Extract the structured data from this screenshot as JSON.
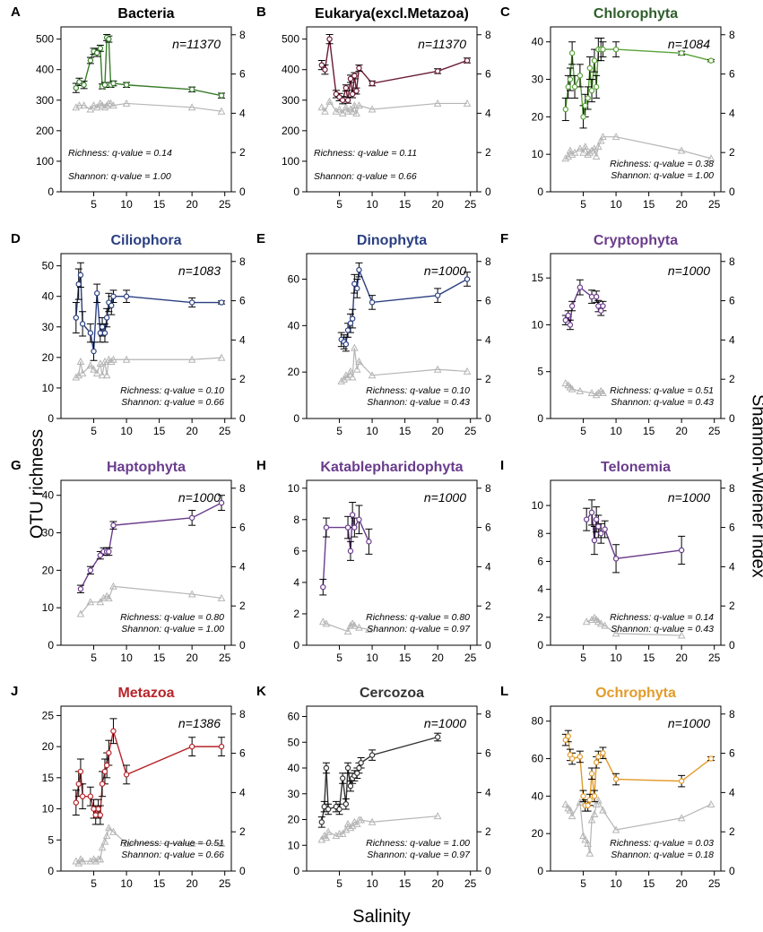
{
  "figure": {
    "y_left_label": "OTU richness",
    "y_right_label": "Shannon-Wiener Index",
    "x_label": "Salinity"
  },
  "colors": {
    "green": "#3a7d2c",
    "maroon": "#6b1a33",
    "lightgreen": "#5aa33a",
    "blue": "#2a3f80",
    "purple": "#6a3c8c",
    "red": "#b8242a",
    "dark": "#333333",
    "orange": "#e39b2a",
    "grey": "#b5b5b5"
  },
  "chart_data": [
    {
      "type": "line",
      "letter": "A",
      "title": "Bacteria",
      "title_color": "#000000",
      "color": "#3a7d2c",
      "n_label": "n=11370",
      "ylim": [
        0,
        540
      ],
      "yticks": [
        0,
        100,
        200,
        300,
        400,
        500
      ],
      "y2lim": [
        0,
        8.4
      ],
      "y2ticks": [
        0,
        2,
        4,
        6,
        8
      ],
      "xlim": [
        0,
        26
      ],
      "xticks": [
        5,
        10,
        15,
        20,
        25
      ],
      "stats": [
        "Richness: q-value = 0.14",
        "Shannon: q-value = 1.00"
      ],
      "stats_pos": "left-low",
      "x": [
        2.3,
        2.8,
        3.5,
        4.5,
        5.0,
        5.5,
        6.0,
        6.3,
        6.7,
        7.0,
        7.3,
        7.6,
        8.0,
        10,
        20,
        24.5
      ],
      "y": [
        340,
        360,
        350,
        430,
        460,
        455,
        470,
        345,
        350,
        505,
        500,
        350,
        355,
        350,
        335,
        315
      ],
      "err": [
        15,
        12,
        12,
        10,
        10,
        12,
        10,
        8,
        8,
        10,
        10,
        8,
        8,
        8,
        8,
        8
      ],
      "shannon": [
        4.3,
        4.4,
        4.4,
        4.2,
        4.4,
        4.3,
        4.5,
        4.4,
        4.3,
        4.4,
        4.5,
        4.5,
        4.4,
        4.5,
        4.3,
        4.1
      ]
    },
    {
      "type": "line",
      "letter": "B",
      "title": "Eukarya(excl.Metazoa)",
      "title_color": "#000000",
      "color": "#6b1a33",
      "n_label": "n=11370",
      "ylim": [
        0,
        540
      ],
      "yticks": [
        0,
        100,
        200,
        300,
        400,
        500
      ],
      "y2lim": [
        0,
        8.4
      ],
      "y2ticks": [
        0,
        2,
        4,
        6,
        8
      ],
      "xlim": [
        0,
        26
      ],
      "xticks": [
        5,
        10,
        15,
        20,
        25
      ],
      "stats": [
        "Richness: q-value = 0.11",
        "Shannon: q-value = 0.66"
      ],
      "stats_pos": "left-low",
      "x": [
        2.3,
        2.8,
        3.5,
        4.5,
        5.0,
        5.5,
        6.0,
        6.3,
        6.7,
        7.0,
        7.3,
        7.6,
        8.0,
        10,
        20,
        24.5
      ],
      "y": [
        415,
        400,
        500,
        320,
        310,
        300,
        340,
        300,
        370,
        320,
        380,
        330,
        405,
        355,
        395,
        430
      ],
      "err": [
        15,
        15,
        15,
        12,
        12,
        12,
        10,
        10,
        12,
        12,
        10,
        10,
        10,
        8,
        8,
        8
      ],
      "shannon": [
        4.3,
        4.1,
        4.6,
        4.1,
        4.2,
        4.0,
        4.3,
        4.1,
        4.2,
        4.1,
        4.4,
        4.0,
        4.4,
        4.2,
        4.5,
        4.5
      ]
    },
    {
      "type": "line",
      "letter": "C",
      "title": "Chlorophyta",
      "title_color": "#2e5e2a",
      "color": "#5aa33a",
      "n_label": "n=1084",
      "ylim": [
        0,
        44
      ],
      "yticks": [
        0,
        10,
        20,
        30,
        40
      ],
      "y2lim": [
        0,
        8.4
      ],
      "y2ticks": [
        0,
        2,
        4,
        6,
        8
      ],
      "xlim": [
        0,
        26
      ],
      "xticks": [
        5,
        10,
        15,
        20,
        25
      ],
      "stats": [
        "Richness: q-value = 0.38",
        "Shannon: q-value = 1.00"
      ],
      "stats_pos": "mid-low",
      "x": [
        2.3,
        2.7,
        3.0,
        3.3,
        3.7,
        4.5,
        5.0,
        5.3,
        5.7,
        6.0,
        6.3,
        6.7,
        7.0,
        7.3,
        7.7,
        8.0,
        10,
        20,
        24.5
      ],
      "y": [
        22,
        28,
        30,
        37,
        28,
        31,
        20,
        23,
        25,
        33,
        27,
        35,
        28,
        38,
        38,
        38,
        38,
        37,
        35
      ],
      "err": [
        3,
        3,
        3,
        3,
        3,
        3,
        3,
        3,
        3,
        3,
        3,
        3,
        3,
        3,
        3,
        2,
        2,
        0.5,
        0.3
      ],
      "shannon": [
        1.7,
        1.8,
        2.1,
        1.9,
        2.0,
        2.2,
        2.0,
        2.3,
        1.9,
        2.0,
        2.1,
        2.2,
        1.8,
        2.3,
        2.6,
        2.8,
        2.8,
        2.1,
        1.7
      ]
    },
    {
      "type": "line",
      "letter": "D",
      "title": "Ciliophora",
      "title_color": "#2a3f80",
      "color": "#2a3f80",
      "n_label": "n=1083",
      "ylim": [
        0,
        54
      ],
      "yticks": [
        0,
        10,
        20,
        30,
        40,
        50
      ],
      "y2lim": [
        0,
        8.4
      ],
      "y2ticks": [
        0,
        2,
        4,
        6,
        8
      ],
      "xlim": [
        0,
        26
      ],
      "xticks": [
        5,
        10,
        15,
        20,
        25
      ],
      "stats": [
        "Richness: q-value = 0.10",
        "Shannon: q-value = 0.66"
      ],
      "stats_pos": "mid-low",
      "x": [
        2.3,
        2.7,
        3.0,
        3.3,
        4.5,
        5.0,
        5.5,
        6.0,
        6.3,
        6.7,
        7.0,
        7.3,
        7.7,
        8.0,
        10,
        20,
        24.5
      ],
      "y": [
        33,
        44,
        47,
        31,
        28,
        22,
        41,
        28,
        30,
        28,
        33,
        38,
        37,
        40,
        40,
        38,
        38
      ],
      "err": [
        5,
        5,
        4,
        4,
        3,
        3,
        3,
        3,
        3,
        3,
        3,
        3,
        3,
        2,
        2,
        1.5,
        0.5
      ],
      "shannon": [
        2.1,
        2.2,
        2.9,
        2.3,
        2.7,
        2.5,
        2.3,
        2.8,
        2.2,
        2.9,
        2.2,
        3.0,
        2.9,
        3.0,
        3.0,
        3.0,
        3.1
      ]
    },
    {
      "type": "line",
      "letter": "E",
      "title": "Dinophyta",
      "title_color": "#2a3f80",
      "color": "#2a3f80",
      "n_label": "n=1000",
      "ylim": [
        0,
        71
      ],
      "yticks": [
        0,
        20,
        40,
        60
      ],
      "y2lim": [
        0,
        8.4
      ],
      "y2ticks": [
        0,
        2,
        4,
        6,
        8
      ],
      "xlim": [
        0,
        26
      ],
      "xticks": [
        5,
        10,
        15,
        20,
        25
      ],
      "stats": [
        "Richness: q-value = 0.10",
        "Shannon: q-value = 0.43"
      ],
      "stats_pos": "mid-low",
      "x": [
        5.3,
        5.7,
        6.0,
        6.3,
        6.7,
        7.0,
        7.3,
        7.7,
        8.0,
        10,
        20,
        24.5
      ],
      "y": [
        34,
        33,
        32,
        38,
        41,
        43,
        58,
        56,
        64,
        50,
        53,
        60
      ],
      "err": [
        3,
        3,
        3,
        3,
        4,
        4,
        4,
        4,
        3,
        3,
        3,
        3
      ],
      "shannon": [
        1.9,
        2.0,
        2.2,
        2.1,
        2.4,
        2.1,
        3.6,
        2.5,
        2.9,
        2.2,
        2.5,
        2.4
      ]
    },
    {
      "type": "line",
      "letter": "F",
      "title": "Cryptophyta",
      "title_color": "#6a3c8c",
      "color": "#6a3c8c",
      "n_label": "n=1000",
      "ylim": [
        0,
        17.6
      ],
      "yticks": [
        0,
        5,
        10,
        15
      ],
      "y2lim": [
        0,
        8.4
      ],
      "y2ticks": [
        0,
        2,
        4,
        6,
        8
      ],
      "xlim": [
        0,
        26
      ],
      "xticks": [
        5,
        10,
        15,
        20,
        25
      ],
      "stats": [
        "Richness: q-value = 0.51",
        "Shannon: q-value = 0.43"
      ],
      "stats_pos": "mid-low",
      "x": [
        2.3,
        2.7,
        3.0,
        3.3,
        4.5,
        6.3,
        7.0,
        7.3,
        7.7,
        8.0
      ],
      "y": [
        10.5,
        11,
        10,
        12,
        14,
        13,
        13,
        12,
        11.5,
        12
      ],
      "err": [
        0.5,
        0.5,
        0.5,
        0.5,
        0.8,
        0.7,
        0.6,
        0.6,
        0.5,
        0.5
      ],
      "shannon": [
        1.8,
        1.7,
        1.6,
        1.5,
        1.4,
        1.3,
        1.2,
        1.3,
        1.4,
        1.3
      ]
    },
    {
      "type": "line",
      "letter": "G",
      "title": "Haptophyta",
      "title_color": "#6a3c8c",
      "color": "#6a3c8c",
      "n_label": "n=1000",
      "ylim": [
        0,
        44
      ],
      "yticks": [
        0,
        10,
        20,
        30,
        40
      ],
      "y2lim": [
        0,
        8.4
      ],
      "y2ticks": [
        0,
        2,
        4,
        6,
        8
      ],
      "xlim": [
        0,
        26
      ],
      "xticks": [
        5,
        10,
        15,
        20,
        25
      ],
      "stats": [
        "Richness: q-value = 0.80",
        "Shannon: q-value = 1.00"
      ],
      "stats_pos": "mid-low",
      "x": [
        3.0,
        4.5,
        6.0,
        6.5,
        7.0,
        7.3,
        8.0,
        20,
        24.5
      ],
      "y": [
        15,
        20,
        24,
        25,
        25,
        25,
        32,
        34,
        38
      ],
      "err": [
        1,
        1,
        1,
        1,
        1,
        1,
        1,
        2,
        2
      ],
      "shannon": [
        1.6,
        2.2,
        2.2,
        2.4,
        2.5,
        2.4,
        3.0,
        2.6,
        2.4
      ]
    },
    {
      "type": "line",
      "letter": "H",
      "title": "Katablepharidophyta",
      "title_color": "#6a3c8c",
      "color": "#6a3c8c",
      "n_label": "n=1000",
      "ylim": [
        0,
        10.5
      ],
      "yticks": [
        0,
        2,
        4,
        6,
        8,
        10
      ],
      "y2lim": [
        0,
        8.4
      ],
      "y2ticks": [
        0,
        2,
        4,
        6,
        8
      ],
      "xlim": [
        0,
        26
      ],
      "xticks": [
        5,
        10,
        15,
        20,
        25
      ],
      "stats": [
        "Richness: q-value = 0.80",
        "Shannon: q-value = 0.97"
      ],
      "stats_pos": "mid-low",
      "x": [
        2.5,
        3.0,
        6.3,
        6.7,
        7.0,
        7.3,
        8.0,
        9.5
      ],
      "y": [
        3.7,
        7.5,
        7.5,
        6,
        8.3,
        7.5,
        8,
        6.6
      ],
      "err": [
        0.5,
        0.6,
        0.7,
        0.6,
        0.8,
        0.6,
        0.9,
        0.8
      ],
      "shannon": [
        1.2,
        1.1,
        0.7,
        1.0,
        1.1,
        1.0,
        0.9,
        0.8
      ]
    },
    {
      "type": "line",
      "letter": "I",
      "title": "Telonemia",
      "title_color": "#6a3c8c",
      "color": "#6a3c8c",
      "n_label": "n=1000",
      "ylim": [
        0,
        11.8
      ],
      "yticks": [
        0,
        2,
        4,
        6,
        8,
        10
      ],
      "y2lim": [
        0,
        8.4
      ],
      "y2ticks": [
        0,
        2,
        4,
        6,
        8
      ],
      "xlim": [
        0,
        26
      ],
      "xticks": [
        5,
        10,
        15,
        20,
        25
      ],
      "stats": [
        "Richness: q-value = 0.14",
        "Shannon: q-value = 0.43"
      ],
      "stats_pos": "mid-low",
      "x": [
        5.5,
        6.3,
        6.7,
        7.0,
        7.3,
        7.7,
        8.3,
        10,
        20
      ],
      "y": [
        9,
        9.5,
        7.5,
        9,
        8.5,
        8,
        8.3,
        6.2,
        6.8
      ],
      "err": [
        0.8,
        0.9,
        1.0,
        0.9,
        0.8,
        0.7,
        0.6,
        1.0,
        1.0
      ],
      "shannon": [
        1.2,
        1.3,
        1.4,
        1.3,
        1.2,
        1.1,
        1.0,
        0.6,
        0.5
      ]
    },
    {
      "type": "line",
      "letter": "J",
      "title": "Metazoa",
      "title_color": "#b8242a",
      "color": "#b8242a",
      "n_label": "n=1386",
      "ylim": [
        0,
        26.5
      ],
      "yticks": [
        0,
        5,
        10,
        15,
        20,
        25
      ],
      "y2lim": [
        0,
        8.4
      ],
      "y2ticks": [
        0,
        2,
        4,
        6,
        8
      ],
      "xlim": [
        0,
        26
      ],
      "xticks": [
        5,
        10,
        15,
        20,
        25
      ],
      "stats": [
        "Richness: q-value = 0.51",
        "Shannon: q-value = 0.66"
      ],
      "stats_pos": "mid-low",
      "x": [
        2.3,
        2.7,
        3.0,
        3.3,
        4.5,
        5.0,
        5.3,
        5.7,
        6.0,
        6.3,
        6.7,
        7.0,
        7.3,
        8.0,
        10,
        20,
        24.5
      ],
      "y": [
        11,
        14,
        16,
        12,
        12,
        10,
        9,
        10,
        9,
        14,
        16,
        17,
        19,
        22.5,
        15.5,
        20,
        20
      ],
      "err": [
        2,
        2,
        2,
        2,
        1.5,
        1.5,
        1.5,
        1.5,
        1.5,
        2,
        2,
        2,
        2,
        2,
        1.5,
        1.5,
        1.5
      ],
      "shannon": [
        0.5,
        0.4,
        0.6,
        0.5,
        0.5,
        0.6,
        0.5,
        0.6,
        0.6,
        1.2,
        1.5,
        1.8,
        2.2,
        2.0,
        1.4,
        1.4,
        1.4
      ]
    },
    {
      "type": "line",
      "letter": "K",
      "title": "Cercozoa",
      "title_color": "#333333",
      "color": "#333333",
      "n_label": "n=1000",
      "ylim": [
        0,
        64
      ],
      "yticks": [
        0,
        10,
        20,
        30,
        40,
        50,
        60
      ],
      "y2lim": [
        0,
        8.4
      ],
      "y2ticks": [
        0,
        2,
        4,
        6,
        8
      ],
      "xlim": [
        0,
        26
      ],
      "xticks": [
        5,
        10,
        15,
        20,
        25
      ],
      "stats": [
        "Richness: q-value = 1.00",
        "Shannon: q-value = 0.97"
      ],
      "stats_pos": "mid-low",
      "x": [
        2.3,
        2.7,
        3.0,
        3.3,
        4.5,
        5.0,
        5.5,
        6.0,
        6.3,
        6.7,
        7.0,
        7.3,
        7.7,
        8.0,
        8.3,
        10,
        20
      ],
      "y": [
        19,
        25,
        40,
        24,
        25,
        24,
        36,
        26,
        40,
        33,
        36,
        37,
        38,
        40,
        42,
        45,
        52
      ],
      "err": [
        2,
        2,
        2,
        2,
        2,
        2,
        2,
        2,
        2,
        2,
        2,
        2,
        2,
        2,
        2,
        2,
        1.5
      ],
      "shannon": [
        1.6,
        1.8,
        1.7,
        2.0,
        1.8,
        1.9,
        1.9,
        2.1,
        2.4,
        2.2,
        2.3,
        2.5,
        2.4,
        2.6,
        2.6,
        2.5,
        2.8
      ]
    },
    {
      "type": "line",
      "letter": "L",
      "title": "Ochrophyta",
      "title_color": "#e39b2a",
      "color": "#e39b2a",
      "n_label": "n=1000",
      "ylim": [
        0,
        88
      ],
      "yticks": [
        0,
        20,
        40,
        60,
        80
      ],
      "y2lim": [
        0,
        8.4
      ],
      "y2ticks": [
        0,
        2,
        4,
        6,
        8
      ],
      "xlim": [
        0,
        26
      ],
      "xticks": [
        5,
        10,
        15,
        20,
        25
      ],
      "stats": [
        "Richness: q-value = 0.03",
        "Shannon: q-value = 0.18"
      ],
      "stats_pos": "mid-low",
      "x": [
        2.3,
        2.7,
        3.0,
        3.3,
        4.5,
        5.0,
        5.3,
        5.7,
        6.0,
        6.3,
        6.7,
        7.0,
        7.3,
        8.0,
        10,
        20,
        24.5
      ],
      "y": [
        70,
        72,
        62,
        60,
        61,
        40,
        35,
        35,
        38,
        52,
        40,
        58,
        61,
        63,
        49,
        48,
        60
      ],
      "err": [
        3,
        3,
        3,
        3,
        3,
        3,
        3,
        3,
        3,
        3,
        3,
        3,
        3,
        3,
        3,
        3,
        1
      ],
      "shannon": [
        3.4,
        3.2,
        3.1,
        2.8,
        3.5,
        1.8,
        1.6,
        1.4,
        0.9,
        2.6,
        2.9,
        3.4,
        3.6,
        3.1,
        2.1,
        2.7,
        3.4
      ]
    }
  ]
}
